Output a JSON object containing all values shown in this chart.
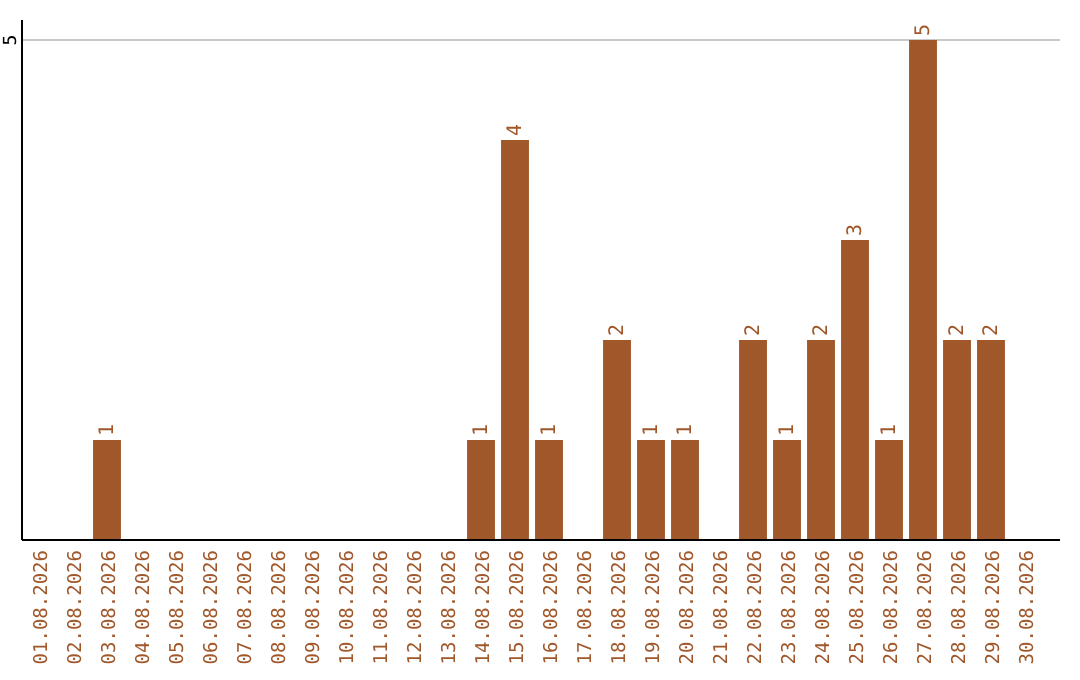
{
  "chart_data": {
    "type": "bar",
    "categories": [
      "01.08.2026",
      "02.08.2026",
      "03.08.2026",
      "04.08.2026",
      "05.08.2026",
      "06.08.2026",
      "07.08.2026",
      "08.08.2026",
      "09.08.2026",
      "10.08.2026",
      "11.08.2026",
      "12.08.2026",
      "13.08.2026",
      "14.08.2026",
      "15.08.2026",
      "16.08.2026",
      "17.08.2026",
      "18.08.2026",
      "19.08.2026",
      "20.08.2026",
      "21.08.2026",
      "22.08.2026",
      "23.08.2026",
      "24.08.2026",
      "25.08.2026",
      "26.08.2026",
      "27.08.2026",
      "28.08.2026",
      "29.08.2026",
      "30.08.2026"
    ],
    "values": [
      0,
      0,
      1,
      0,
      0,
      0,
      0,
      0,
      0,
      0,
      0,
      0,
      0,
      1,
      4,
      1,
      0,
      2,
      1,
      1,
      0,
      2,
      1,
      2,
      3,
      1,
      5,
      2,
      2,
      0
    ],
    "value_labels": [
      null,
      null,
      "1",
      null,
      null,
      null,
      null,
      null,
      null,
      null,
      null,
      null,
      null,
      "1",
      "4",
      "1",
      null,
      "2",
      "1",
      "1",
      null,
      "2",
      "1",
      "2",
      "3",
      "1",
      "5",
      "2",
      "2",
      null
    ],
    "color": "#a0572a",
    "ylim": [
      0,
      5.2
    ],
    "yticks": [
      5
    ],
    "grid": "y"
  }
}
